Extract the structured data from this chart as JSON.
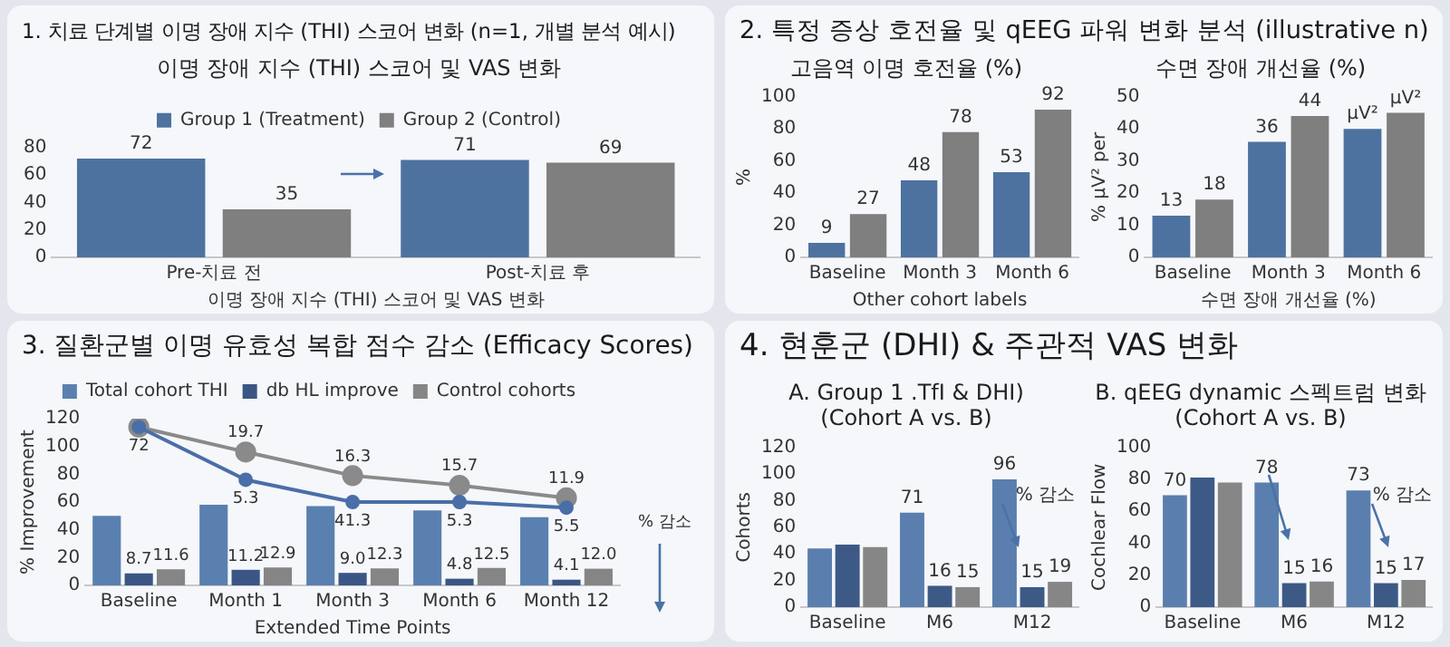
{
  "chart_data": [
    {
      "type": "bar",
      "title": "1. 치료 단계별 이명 장애 지수 (THI) 스코어 변화 (n=1, 개별 분석 예시)",
      "subtitle": "이명 장애 지수 (THI) 스코어 및 VAS 변화",
      "xlabel": "이명 장애 지수 (THI) 스코어 및 VAS 변화",
      "categories": [
        "Pre-치료 전",
        "Post-치료 후"
      ],
      "series": [
        {
          "name": "Group 1 (Treatment)",
          "color": "#4e72a0",
          "values": [
            72,
            71
          ]
        },
        {
          "name": "Group 2 (Control)",
          "color": "#7f7f7f",
          "values": [
            35,
            69
          ]
        }
      ],
      "ylim": [
        0,
        80
      ],
      "yticks": [
        0,
        20,
        40,
        60,
        80
      ],
      "legend": "top",
      "data_labels": true
    },
    {
      "type": "bar",
      "title": "2. 특정 증상 호전율 및 qEEG 파워 변화 분석 (illustrative n)",
      "subtitle": "고음역 이명 호전율 (%)",
      "xlabel": "Other cohort labels",
      "ylabel": "%",
      "categories": [
        "Baseline",
        "Month 3",
        "Month 6"
      ],
      "series": [
        {
          "color": "#4e72a0",
          "values": [
            9,
            48,
            53
          ]
        },
        {
          "color": "#7f7f7f",
          "values": [
            27,
            78,
            92
          ]
        }
      ],
      "ylim": [
        0,
        100
      ],
      "yticks": [
        0,
        20,
        40,
        60,
        80,
        100
      ],
      "data_labels": true
    },
    {
      "type": "bar",
      "subtitle": "수면 장애 개선율 (%)",
      "xlabel": "수면 장애 개선율 (%)",
      "ylabel": "% µV² per",
      "categories": [
        "Baseline",
        "Month 3",
        "Month 6"
      ],
      "series": [
        {
          "color": "#4e72a0",
          "values": [
            13,
            36,
            40
          ],
          "value_labels": [
            "13",
            "36",
            "µV²"
          ]
        },
        {
          "color": "#7f7f7f",
          "values": [
            18,
            44,
            45
          ],
          "value_labels": [
            "18",
            "44",
            "µV²"
          ]
        }
      ],
      "ylim": [
        0,
        50
      ],
      "yticks": [
        0,
        10,
        20,
        30,
        40,
        50
      ]
    },
    {
      "type": "bar",
      "title": "3. 질환군별 이명 유효성 복합 점수 감소 (Efficacy Scores)",
      "xlabel": "Extended Time Points",
      "ylabel": "% Improvement",
      "categories": [
        "Baseline",
        "Month 1",
        "Month 3",
        "Month 6",
        "Month 12"
      ],
      "series": [
        {
          "name": "Total cohort THI",
          "color": "#5a80b0",
          "values": [
            50,
            58,
            57,
            54,
            49
          ]
        },
        {
          "name": "db HL improve",
          "color": "#3b5684",
          "values": [
            8.7,
            11.2,
            9.0,
            4.8,
            4.1
          ],
          "value_labels": [
            "8.7",
            "11.2",
            "9.0",
            "4.8",
            "4.1"
          ]
        },
        {
          "name": "Control cohorts",
          "color": "#858585",
          "values": [
            11.6,
            12.9,
            12.3,
            12.5,
            12.0
          ],
          "value_labels": [
            "11.6",
            "12.9",
            "12.3",
            "12.5",
            "12.0"
          ]
        },
        {
          "type": "line",
          "color": "#4a6ea8",
          "values": [
            114,
            76,
            60,
            60,
            56
          ]
        },
        {
          "type": "line",
          "color": "#8a8a8a",
          "values": [
            114,
            96,
            79,
            72,
            63
          ]
        }
      ],
      "ylim": [
        0,
        120
      ],
      "yticks": [
        0,
        20,
        40,
        60,
        80,
        100,
        120
      ],
      "legend": "top",
      "marker": "circle",
      "annotations": [
        "% 감소",
        {
          "text": "72",
          "x": "Baseline",
          "y": 114
        },
        {
          "text": "5.3",
          "x": "Month 1",
          "y": 76
        },
        {
          "text": "41.3",
          "x": "Month 3",
          "y": 60
        },
        {
          "text": "5.3",
          "x": "Month 6",
          "y": 60
        },
        {
          "text": "5.5",
          "x": "Month 12",
          "y": 56
        },
        {
          "text": "19.7",
          "x": "Month 1",
          "y": 96
        },
        {
          "text": "16.3",
          "x": "Month 3",
          "y": 79
        },
        {
          "text": "15.7",
          "x": "Month 6",
          "y": 72
        },
        {
          "text": "11.9",
          "x": "Month 12",
          "y": 63
        }
      ]
    },
    {
      "type": "bar",
      "title": "4. 현훈군 (DHI) & 주관적 VAS 변화",
      "subtitle": "A. Group 1 .TfI & DHI)\n(Cohort A vs. B)",
      "ylabel": "Cohorts",
      "categories": [
        "Baseline",
        "M6",
        "M12"
      ],
      "series": [
        {
          "color": "#5a7fae",
          "values": [
            44,
            71,
            96
          ],
          "value_labels": [
            null,
            "71",
            "96"
          ]
        },
        {
          "color": "#3d5a86",
          "values": [
            47,
            16,
            15
          ],
          "value_labels": [
            null,
            "16",
            "15"
          ]
        },
        {
          "color": "#868686",
          "values": [
            45,
            15,
            19
          ],
          "value_labels": [
            null,
            "15",
            "19"
          ]
        }
      ],
      "ylim": [
        0,
        120
      ],
      "yticks": [
        0,
        20,
        40,
        60,
        80,
        100,
        120
      ],
      "annotations": [
        "% 감소"
      ]
    },
    {
      "type": "bar",
      "subtitle": "B. qEEG dynamic 스펙트럼 변화\n(Cohort A vs. B)",
      "ylabel": "Cochlear Flow",
      "categories": [
        "Baseline",
        "M6",
        "M12"
      ],
      "series": [
        {
          "color": "#5a7fae",
          "values": [
            70,
            78,
            73
          ],
          "value_labels": [
            "70",
            "78",
            "73"
          ]
        },
        {
          "color": "#3d5a86",
          "values": [
            81,
            15,
            15
          ],
          "value_labels": [
            null,
            "15",
            "15"
          ]
        },
        {
          "color": "#868686",
          "values": [
            78,
            16,
            17
          ],
          "value_labels": [
            null,
            "16",
            "17"
          ]
        }
      ],
      "ylim": [
        0,
        100
      ],
      "yticks": [
        0,
        20,
        40,
        60,
        80,
        100
      ],
      "annotations": [
        "% 감소"
      ]
    }
  ]
}
